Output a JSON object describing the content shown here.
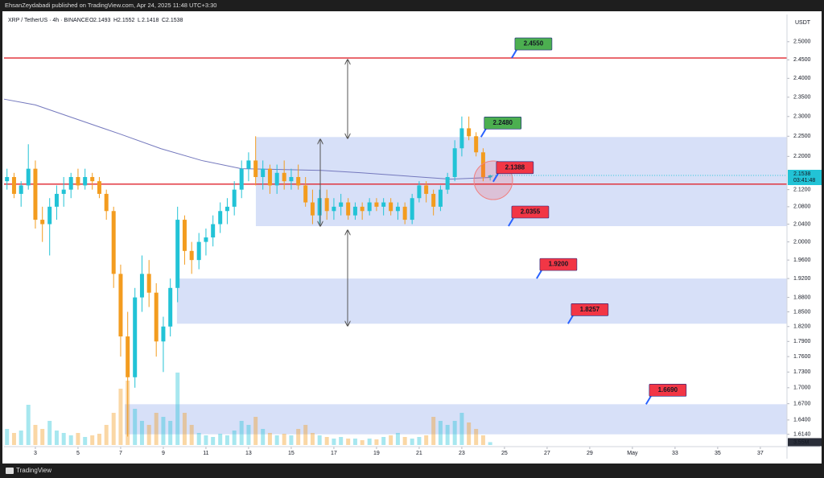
{
  "header": {
    "author": "EhsanZeydabadi published on TradingView.com, Apr 24, 2025 11:48 UTC+3:30",
    "footer": "TradingView"
  },
  "chart_data": {
    "type": "candlestick",
    "symbol": "XRP / TetherUS · 4h · BINANCE",
    "ohlc": [
      {
        "name": "O",
        "value": 2.1493
      },
      {
        "name": "H",
        "value": 2.1552
      },
      {
        "name": "L",
        "value": 2.1418
      },
      {
        "name": "C",
        "value": 2.1538
      }
    ],
    "currency": "USDT",
    "log_scale": true,
    "xlim": [
      1.53,
      38.25
    ],
    "xticks": [
      3,
      5,
      7,
      9,
      11,
      13,
      15,
      17,
      19,
      21,
      23,
      25,
      27,
      29,
      {
        "value": 31,
        "label": "May"
      },
      33,
      35,
      37
    ],
    "ylim": [
      1.592,
      2.577
    ],
    "yticks": [
      {
        "value": 2.5,
        "label": "2.5000"
      },
      {
        "value": 2.45,
        "label": "2.4500"
      },
      {
        "value": 2.4,
        "label": "2.4000"
      },
      {
        "value": 2.35,
        "label": "2.3500"
      },
      {
        "value": 2.3,
        "label": "2.3000"
      },
      {
        "value": 2.25,
        "label": "2.2500"
      },
      {
        "value": 2.2,
        "label": "2.2000"
      },
      {
        "value": 2.12,
        "label": "2.1200"
      },
      {
        "value": 2.08,
        "label": "2.0800"
      },
      {
        "value": 2.04,
        "label": "2.0400"
      },
      {
        "value": 2.0,
        "label": "2.0000"
      },
      {
        "value": 1.96,
        "label": "1.9600"
      },
      {
        "value": 1.92,
        "label": "1.9200"
      },
      {
        "value": 1.88,
        "label": "1.8800"
      },
      {
        "value": 1.85,
        "label": "1.8500"
      },
      {
        "value": 1.82,
        "label": "1.8200"
      },
      {
        "value": 1.79,
        "label": "1.7900"
      },
      {
        "value": 1.76,
        "label": "1.7600"
      },
      {
        "value": 1.73,
        "label": "1.7300"
      },
      {
        "value": 1.7,
        "label": "1.7000"
      },
      {
        "value": 1.67,
        "label": "1.6700"
      },
      {
        "value": 1.64,
        "label": "1.6400"
      },
      {
        "value": 1.614,
        "label": "1.6140"
      }
    ],
    "x": [
      1.67,
      2.0,
      2.33,
      2.67,
      3.0,
      3.33,
      3.67,
      4.0,
      4.33,
      4.67,
      5.0,
      5.33,
      5.67,
      6.0,
      6.33,
      6.67,
      7.0,
      7.33,
      7.67,
      8.0,
      8.33,
      8.67,
      9.0,
      9.33,
      9.67,
      10.0,
      10.33,
      10.67,
      11.0,
      11.33,
      11.67,
      12.0,
      12.33,
      12.67,
      13.0,
      13.33,
      13.67,
      14.0,
      14.33,
      14.67,
      15.0,
      15.33,
      15.67,
      16.0,
      16.33,
      16.67,
      17.0,
      17.33,
      17.67,
      18.0,
      18.33,
      18.67,
      19.0,
      19.33,
      19.67,
      20.0,
      20.33,
      20.67,
      21.0,
      21.33,
      21.67,
      22.0,
      22.33,
      22.67,
      23.0,
      23.33,
      23.67,
      24.0,
      24.33
    ],
    "open": [
      2.14,
      2.15,
      2.11,
      2.13,
      2.17,
      2.05,
      2.04,
      2.08,
      2.11,
      2.12,
      2.15,
      2.13,
      2.15,
      2.14,
      2.11,
      2.07,
      1.93,
      1.8,
      1.72,
      1.88,
      1.93,
      1.89,
      1.79,
      1.82,
      1.9,
      2.05,
      1.98,
      1.96,
      2.0,
      2.01,
      2.04,
      2.07,
      2.08,
      2.12,
      2.17,
      2.19,
      2.15,
      2.17,
      2.13,
      2.16,
      2.14,
      2.15,
      2.13,
      2.09,
      2.06,
      2.1,
      2.07,
      2.08,
      2.09,
      2.06,
      2.08,
      2.07,
      2.09,
      2.08,
      2.09,
      2.07,
      2.08,
      2.05,
      2.1,
      2.13,
      2.11,
      2.08,
      2.12,
      2.15,
      2.22,
      2.27,
      2.25,
      2.21,
      2.1493
    ],
    "high": [
      2.17,
      2.16,
      2.14,
      2.23,
      2.19,
      2.08,
      2.1,
      2.13,
      2.15,
      2.16,
      2.17,
      2.17,
      2.16,
      2.15,
      2.12,
      2.08,
      1.95,
      1.85,
      1.9,
      1.97,
      1.96,
      1.91,
      1.84,
      1.92,
      2.08,
      2.06,
      2.0,
      2.02,
      2.03,
      2.06,
      2.09,
      2.1,
      2.14,
      2.19,
      2.21,
      2.25,
      2.19,
      2.18,
      2.18,
      2.19,
      2.17,
      2.18,
      2.15,
      2.12,
      2.12,
      2.12,
      2.1,
      2.11,
      2.1,
      2.09,
      2.09,
      2.1,
      2.1,
      2.1,
      2.1,
      2.09,
      2.09,
      2.11,
      2.14,
      2.14,
      2.12,
      2.13,
      2.16,
      2.24,
      2.3,
      2.3,
      2.26,
      2.22,
      2.1552
    ],
    "low": [
      2.12,
      2.1,
      2.08,
      2.12,
      2.03,
      2.0,
      1.97,
      2.05,
      2.08,
      2.1,
      2.12,
      2.12,
      2.12,
      2.1,
      2.05,
      1.9,
      1.76,
      1.61,
      1.7,
      1.85,
      1.86,
      1.76,
      1.73,
      1.8,
      1.87,
      1.95,
      1.93,
      1.94,
      1.97,
      1.99,
      2.02,
      2.04,
      2.06,
      2.1,
      2.14,
      2.13,
      2.12,
      2.11,
      2.11,
      2.12,
      2.12,
      2.12,
      2.08,
      2.04,
      2.04,
      2.05,
      2.05,
      2.06,
      2.05,
      2.05,
      2.05,
      2.06,
      2.07,
      2.06,
      2.06,
      2.05,
      2.04,
      2.04,
      2.09,
      2.09,
      2.06,
      2.07,
      2.11,
      2.14,
      2.2,
      2.24,
      2.2,
      2.14,
      2.1418
    ],
    "close": [
      2.15,
      2.11,
      2.13,
      2.17,
      2.05,
      2.04,
      2.08,
      2.11,
      2.12,
      2.15,
      2.13,
      2.15,
      2.14,
      2.11,
      2.07,
      1.93,
      1.8,
      1.72,
      1.88,
      1.93,
      1.89,
      1.79,
      1.82,
      1.9,
      2.05,
      1.98,
      1.96,
      2.0,
      2.01,
      2.04,
      2.07,
      2.08,
      2.12,
      2.17,
      2.19,
      2.15,
      2.17,
      2.13,
      2.16,
      2.14,
      2.15,
      2.13,
      2.09,
      2.06,
      2.1,
      2.07,
      2.08,
      2.09,
      2.06,
      2.08,
      2.07,
      2.09,
      2.08,
      2.09,
      2.07,
      2.08,
      2.05,
      2.1,
      2.13,
      2.11,
      2.08,
      2.12,
      2.15,
      2.22,
      2.27,
      2.25,
      2.21,
      2.15,
      2.1538
    ],
    "up_color": "#22c3d6",
    "down_color": "#f39c1f",
    "last_price": 2.1538,
    "countdown": "03:41:48",
    "volume": {
      "values": [
        20,
        15,
        18,
        50,
        25,
        20,
        30,
        18,
        15,
        12,
        15,
        10,
        12,
        14,
        25,
        40,
        70,
        80,
        45,
        30,
        25,
        40,
        35,
        30,
        90,
        40,
        25,
        15,
        12,
        10,
        14,
        12,
        18,
        30,
        25,
        35,
        20,
        15,
        12,
        14,
        12,
        20,
        25,
        15,
        12,
        10,
        8,
        10,
        8,
        8,
        6,
        8,
        7,
        10,
        12,
        15,
        10,
        8,
        10,
        12,
        35,
        30,
        25,
        30,
        40,
        28,
        20,
        12,
        3.55
      ],
      "ylim": [
        0,
        100
      ],
      "last": {
        "value": 3.55,
        "label": "3.55M"
      }
    },
    "moving_average": {
      "x": [
        1.53,
        3,
        5.11,
        7,
        8.89,
        10.8,
        12.66,
        14.5,
        16.43,
        18.3,
        20.21,
        22.47,
        24.36
      ],
      "values": [
        2.345,
        2.33,
        2.29,
        2.255,
        2.219,
        2.19,
        2.17,
        2.168,
        2.166,
        2.16,
        2.153,
        2.145,
        2.149
      ],
      "color": "#7478bd"
    },
    "hlines": {
      "values": [
        2.455,
        2.133
      ],
      "color": "#e0262f"
    },
    "zone_color": "#c9d6f5",
    "zones": [
      {
        "from": 13.34,
        "top": 2.248,
        "bottom": 2.0355
      },
      {
        "from": 9.64,
        "top": 1.92,
        "bottom": 1.8257
      },
      {
        "from": 7.19,
        "top": 1.669,
        "bottom": 1.614
      }
    ],
    "levels": [
      {
        "x": 25.34,
        "value": 2.455,
        "label": "2.4550",
        "color": "#4caf50"
      },
      {
        "x": 23.9,
        "value": 2.248,
        "label": "2.2480",
        "color": "#4caf50"
      },
      {
        "x": 24.47,
        "value": 2.1388,
        "label": "2.1388",
        "color": "#f23645"
      },
      {
        "x": 25.19,
        "value": 2.0355,
        "label": "2.0355",
        "color": "#f23645"
      },
      {
        "x": 26.51,
        "value": 1.92,
        "label": "1.9200",
        "color": "#f23645"
      },
      {
        "x": 27.98,
        "value": 1.8257,
        "label": "1.8257",
        "color": "#f23645"
      },
      {
        "x": 31.64,
        "value": 1.669,
        "label": "1.6690",
        "color": "#f23645"
      }
    ]
  }
}
